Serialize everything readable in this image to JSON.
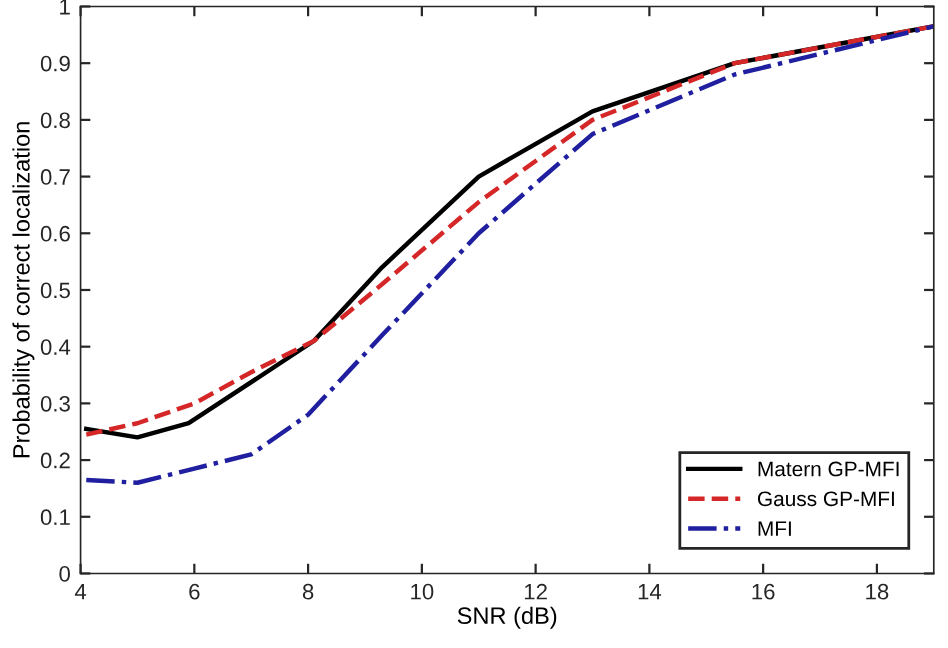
{
  "chart_data": {
    "type": "line",
    "xlabel": "SNR (dB)",
    "ylabel": "Probability of correct localization",
    "xlim": [
      4,
      19
    ],
    "xticks": [
      4,
      6,
      8,
      10,
      12,
      14,
      16,
      18
    ],
    "ylim": [
      0,
      1
    ],
    "yticks": [
      0,
      0.1,
      0.2,
      0.3,
      0.4,
      0.5,
      0.6,
      0.7,
      0.8,
      0.9,
      1
    ],
    "grid": false,
    "legend": "bottom right",
    "marker": "none",
    "series": [
      {
        "name": "Matern GP-MFI",
        "color": "#000000",
        "line_style": "solid",
        "x": [
          4.1,
          5,
          5.9,
          8.1,
          9.3,
          11,
          13,
          15.5,
          19
        ],
        "values": [
          0.255,
          0.24,
          0.265,
          0.41,
          0.54,
          0.7,
          0.815,
          0.9,
          0.965
        ]
      },
      {
        "name": "Gauss GP-MFI",
        "color": "#d62728",
        "line_style": "dashed",
        "x": [
          4.1,
          5,
          6,
          7,
          8.1,
          9.3,
          11,
          13,
          15.5,
          19
        ],
        "values": [
          0.245,
          0.265,
          0.3,
          0.355,
          0.41,
          0.51,
          0.655,
          0.8,
          0.9,
          0.965
        ]
      },
      {
        "name": "MFI",
        "color": "#1f1fa0",
        "line_style": "dashdot",
        "x": [
          4.1,
          5,
          6,
          7,
          8,
          9.3,
          11,
          13,
          15.5,
          19
        ],
        "values": [
          0.165,
          0.16,
          0.185,
          0.21,
          0.28,
          0.42,
          0.6,
          0.775,
          0.88,
          0.965
        ]
      }
    ]
  }
}
